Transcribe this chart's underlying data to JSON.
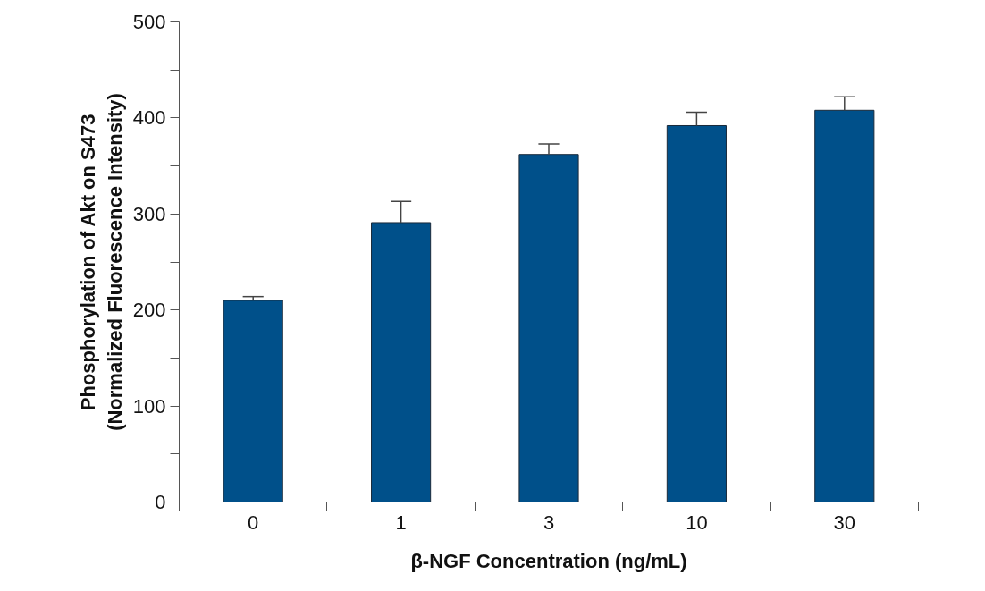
{
  "chart_data": {
    "type": "bar",
    "xlabel": "β-NGF Concentration (ng/mL)",
    "ylabel": "Phosphorylation of Akt on S473\n(Normalized Fluorescence Intensity)",
    "categories": [
      "0",
      "1",
      "3",
      "10",
      "30"
    ],
    "values": [
      210,
      291,
      362,
      392,
      408
    ],
    "errors": [
      [
        210,
        214
      ],
      [
        291,
        313
      ],
      [
        362,
        373
      ],
      [
        392,
        406
      ],
      [
        408,
        422
      ]
    ],
    "color": "#00508a",
    "ylim": [
      0,
      500
    ],
    "yticks": [
      0,
      {
        "value": 50,
        "label": null
      },
      100,
      {
        "value": 150,
        "label": null
      },
      200,
      {
        "value": 250,
        "label": null
      },
      300,
      {
        "value": 350,
        "label": null
      },
      400,
      {
        "value": 450,
        "label": null
      },
      500
    ],
    "grid": false
  }
}
